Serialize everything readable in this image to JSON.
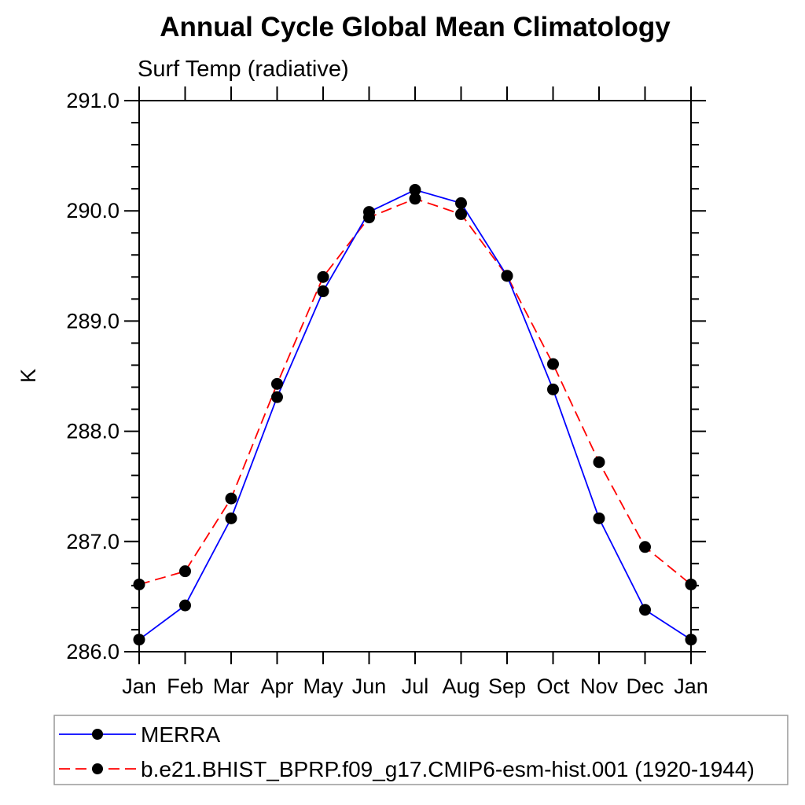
{
  "chart_data": {
    "type": "line",
    "title": "Annual Cycle Global Mean Climatology",
    "subtitle": "Surf Temp (radiative)",
    "ylabel": "K",
    "x_categories": [
      "Jan",
      "Feb",
      "Mar",
      "Apr",
      "May",
      "Jun",
      "Jul",
      "Aug",
      "Sep",
      "Oct",
      "Nov",
      "Dec",
      "Jan"
    ],
    "ylim": [
      286.0,
      291.0
    ],
    "ytick_step": 1.0,
    "yminor_step": 0.2,
    "ytick_labels": [
      "286.0",
      "287.0",
      "288.0",
      "289.0",
      "290.0",
      "291.0"
    ],
    "grid": false,
    "axis_color": "#000000",
    "marker_color": "#000000",
    "legend_position": "below-left",
    "legend_border_color": "#999999",
    "series": [
      {
        "name": "MERRA",
        "color": "#0000ff",
        "style": "solid",
        "marker": "circle",
        "values": [
          286.11,
          286.42,
          287.21,
          288.31,
          289.27,
          289.99,
          290.19,
          290.07,
          289.41,
          288.38,
          287.21,
          286.38,
          286.11
        ]
      },
      {
        "name": "b.e21.BHIST_BPRP.f09_g17.CMIP6-esm-hist.001 (1920-1944)",
        "color": "#ff0000",
        "style": "dashed",
        "marker": "circle",
        "values": [
          286.61,
          286.73,
          287.39,
          288.43,
          289.4,
          289.94,
          290.11,
          289.97,
          289.41,
          288.61,
          287.72,
          286.95,
          286.61
        ]
      }
    ]
  }
}
